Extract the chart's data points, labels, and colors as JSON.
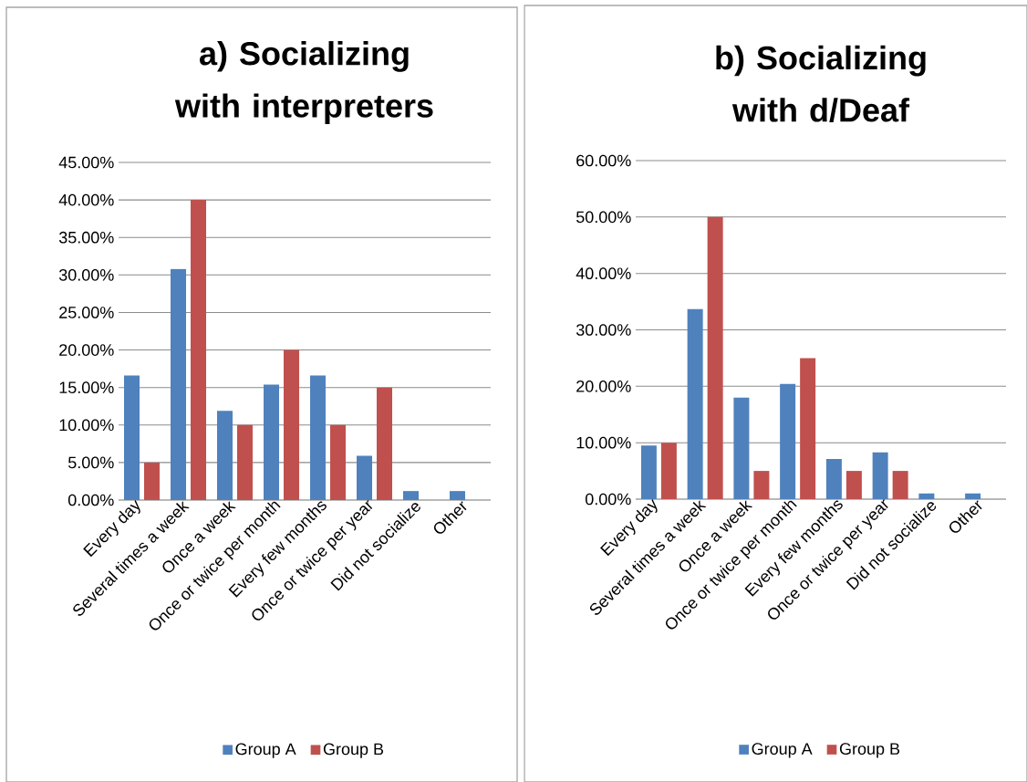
{
  "chart_data": [
    {
      "type": "bar",
      "title": "a) Socializing with interpreters",
      "categories": [
        "Every day",
        "Several times a week",
        "Once a week",
        "Once or twice per month",
        "Every few months",
        "Once or twice per year",
        "Did not socialize",
        "Other"
      ],
      "series": [
        {
          "name": "Group A",
          "color": "#4f81bd",
          "values": [
            16.6,
            30.8,
            11.9,
            15.4,
            16.6,
            5.9,
            1.2,
            1.2
          ]
        },
        {
          "name": "Group B",
          "color": "#c0504d",
          "values": [
            5,
            40,
            10,
            20,
            10,
            15,
            0,
            0
          ]
        }
      ],
      "ylim": [
        0,
        45
      ],
      "yticks": [
        {
          "value": 0,
          "label": "0.00%"
        },
        {
          "value": 5,
          "label": "5.00%"
        },
        {
          "value": 10,
          "label": "10.00%"
        },
        {
          "value": 15,
          "label": "15.00%"
        },
        {
          "value": 20,
          "label": "20.00%"
        },
        {
          "value": 25,
          "label": "25.00%"
        },
        {
          "value": 30,
          "label": "30.00%"
        },
        {
          "value": 35,
          "label": "35.00%"
        },
        {
          "value": 40,
          "label": "40.00%"
        },
        {
          "value": 45,
          "label": "45.00%"
        }
      ],
      "grid": "y",
      "legend": "bottom"
    },
    {
      "type": "bar",
      "title": "b) Socializing with d/Deaf",
      "categories": [
        "Every day",
        "Several times a week",
        "Once a week",
        "Once or twice per month",
        "Every few months",
        "Once or twice per year",
        "Did not socialize",
        "Other"
      ],
      "series": [
        {
          "name": "Group A",
          "color": "#4f81bd",
          "values": [
            9.5,
            33.7,
            18.0,
            20.4,
            7.1,
            8.3,
            1.0,
            1.0
          ]
        },
        {
          "name": "Group B",
          "color": "#c0504d",
          "values": [
            10,
            50,
            5,
            25,
            5,
            5,
            0,
            0
          ]
        }
      ],
      "ylim": [
        0,
        60
      ],
      "yticks": [
        {
          "value": 0,
          "label": "0.00%"
        },
        {
          "value": 10,
          "label": "10.00%"
        },
        {
          "value": 20,
          "label": "20.00%"
        },
        {
          "value": 30,
          "label": "30.00%"
        },
        {
          "value": 40,
          "label": "40.00%"
        },
        {
          "value": 50,
          "label": "50.00%"
        },
        {
          "value": 60,
          "label": "60.00%"
        }
      ],
      "grid": "y",
      "legend": "bottom"
    }
  ]
}
